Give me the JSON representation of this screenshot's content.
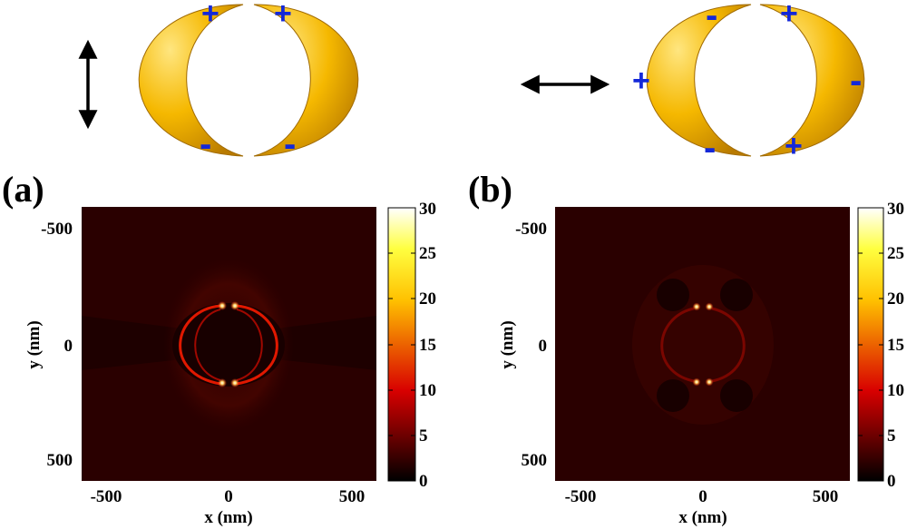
{
  "panels": [
    {
      "label": "(a)",
      "polarization": "vertical",
      "charges": [
        "+",
        "+",
        "-",
        "-"
      ]
    },
    {
      "label": "(b)",
      "polarization": "horizontal",
      "charges": [
        "-",
        "+",
        "+",
        "-",
        "-",
        "+"
      ]
    }
  ],
  "colors": {
    "crescent_gold": "#f5b800",
    "charge_sign": "#1428d8",
    "map_background": "#2a0000"
  },
  "chart_data": [
    {
      "type": "heatmap",
      "title": "",
      "xlabel": "x (nm)",
      "ylabel": "y (nm)",
      "xlim": [
        -600,
        600
      ],
      "ylim": [
        -600,
        600
      ],
      "xticks": [
        "-500",
        "0",
        "500"
      ],
      "yticks": [
        "-500",
        "0",
        "500"
      ],
      "colorbar": {
        "min": 0,
        "max": 30,
        "ticks": [
          "0",
          "5",
          "10",
          "15",
          "20",
          "25",
          "30"
        ],
        "colormap": "hot"
      },
      "hotspots_nm": [
        [
          -20,
          -170
        ],
        [
          20,
          -170
        ],
        [
          -20,
          170
        ],
        [
          20,
          170
        ]
      ]
    },
    {
      "type": "heatmap",
      "title": "",
      "xlabel": "x (nm)",
      "ylabel": "y (nm)",
      "xlim": [
        -600,
        600
      ],
      "ylim": [
        -600,
        600
      ],
      "xticks": [
        "-500",
        "0",
        "500"
      ],
      "yticks": [
        "-500",
        "0",
        "500"
      ],
      "colorbar": {
        "min": 0,
        "max": 30,
        "ticks": [
          "0",
          "5",
          "10",
          "15",
          "20",
          "25",
          "30"
        ],
        "colormap": "hot"
      },
      "hotspots_nm": [
        [
          -20,
          -170
        ],
        [
          20,
          -170
        ],
        [
          -20,
          170
        ],
        [
          20,
          170
        ]
      ]
    }
  ]
}
